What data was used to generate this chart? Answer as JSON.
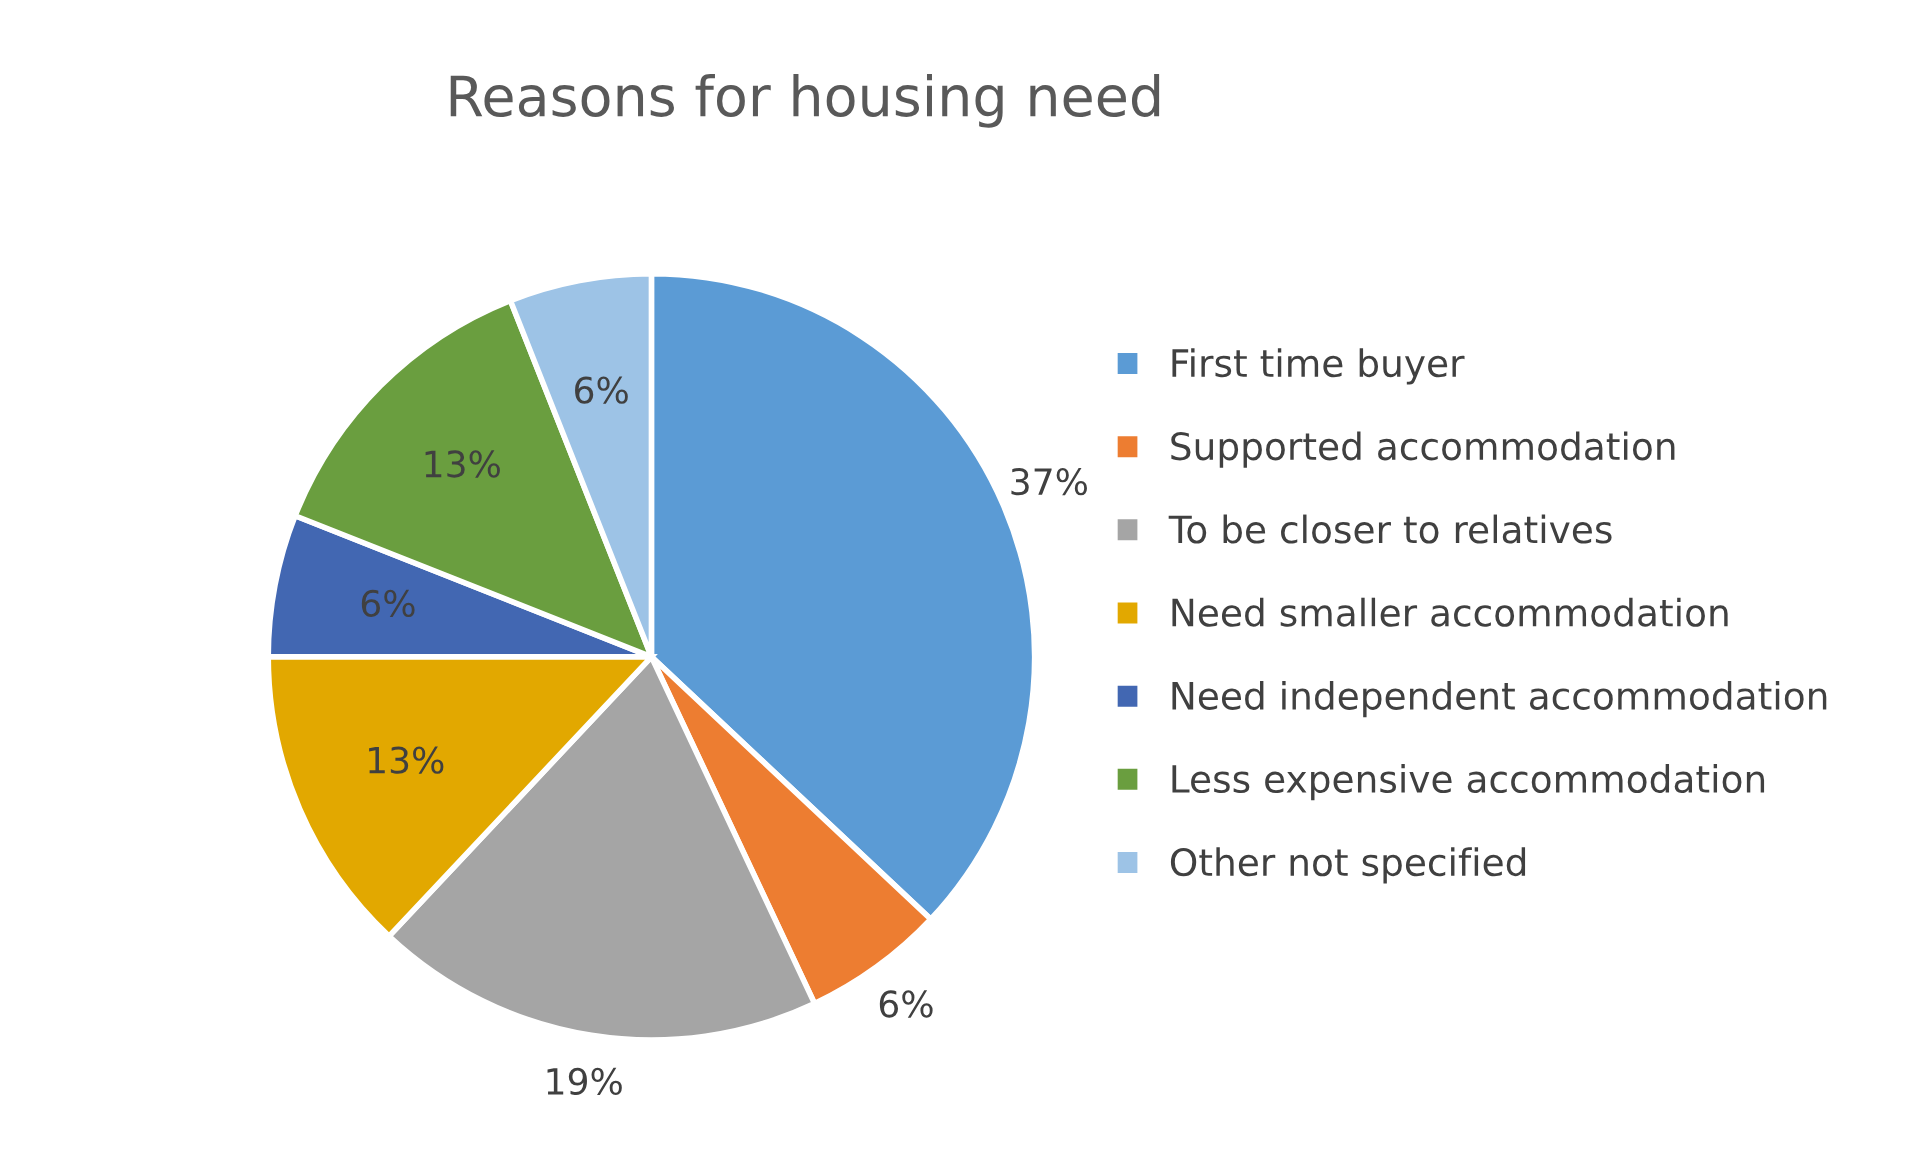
{
  "chart_data": {
    "type": "pie",
    "title": "Reasons for housing need",
    "categories": [
      "First time buyer",
      "Supported accommodation",
      "To be closer to relatives",
      "Need smaller accommodation",
      "Need independent accommodation",
      "Less expensive accommodation",
      "Other not specified"
    ],
    "values": [
      37,
      6,
      19,
      13,
      6,
      13,
      6
    ],
    "colors": [
      "#5b9bd5",
      "#ed7d31",
      "#a5a5a5",
      "#e2a800",
      "#4267b2",
      "#6a9e3f",
      "#9dc3e6"
    ],
    "value_labels": [
      "37%",
      "6%",
      "19%",
      "13%",
      "6%",
      "13%",
      "6%"
    ],
    "legend": "right"
  }
}
